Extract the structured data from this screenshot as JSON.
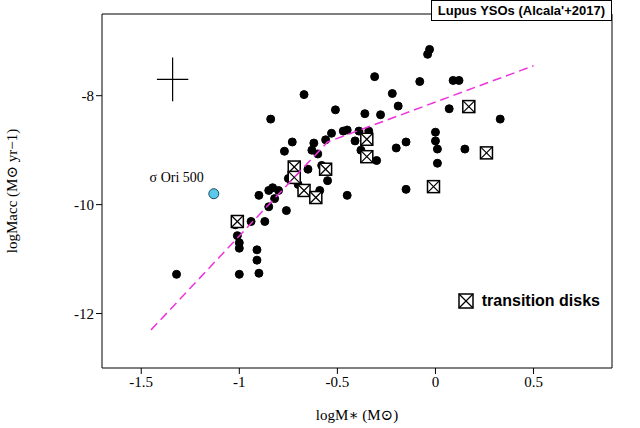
{
  "chart_data": {
    "type": "scatter",
    "title": "Lupus YSOs (Alcala'+2017)",
    "x_label": "logM∗ (M⊙)",
    "y_label": "logMacc (M⊙ yr−1)",
    "xlim": [
      -1.7,
      0.9
    ],
    "ylim": [
      -13,
      -6.5
    ],
    "xticks": [
      -1.5,
      -1,
      -0.5,
      0,
      0.5
    ],
    "yticks": [
      -12,
      -10,
      -8
    ],
    "legend": "lower right",
    "series": [
      {
        "type": "scatter",
        "marker": "circle",
        "color": "#000000",
        "x": [
          -1.32,
          -1.02,
          -1.01,
          -1.0,
          -1.0,
          -1.0,
          -0.91,
          -0.91,
          -0.9,
          -0.9,
          -0.94,
          -0.87,
          -0.85,
          -0.85,
          -0.84,
          -0.83,
          -0.82,
          -0.8,
          -0.77,
          -0.76,
          -0.75,
          -0.73,
          -0.7,
          -0.68,
          -0.67,
          -0.65,
          -0.63,
          -0.62,
          -0.6,
          -0.59,
          -0.58,
          -0.56,
          -0.55,
          -0.53,
          -0.51,
          -0.47,
          -0.45,
          -0.45,
          -0.41,
          -0.39,
          -0.38,
          -0.36,
          -0.34,
          -0.31,
          -0.3,
          -0.28,
          -0.22,
          -0.2,
          -0.19,
          -0.15,
          -0.15,
          -0.08,
          -0.04,
          -0.03,
          -0.02,
          0.0,
          0.0,
          0.01,
          0.01,
          0.07,
          0.09,
          0.12,
          0.15,
          0.33
        ],
        "values": [
          -11.28,
          -10.37,
          -10.57,
          -10.7,
          -10.8,
          -11.28,
          -10.83,
          -11.02,
          -11.26,
          -9.83,
          -10.31,
          -10.31,
          -9.74,
          -10.04,
          -8.43,
          -9.69,
          -9.89,
          -9.74,
          -9.02,
          -10.11,
          -9.52,
          -8.85,
          -9.63,
          -9.74,
          -7.98,
          -9.35,
          -9.0,
          -8.87,
          -9.07,
          -9.74,
          -9.28,
          -8.81,
          -9.56,
          -8.69,
          -8.26,
          -8.65,
          -8.63,
          -9.83,
          -8.83,
          -8.65,
          -9.0,
          -8.33,
          -8.65,
          -7.65,
          -9.19,
          -8.35,
          -7.96,
          -8.96,
          -8.19,
          -9.72,
          -8.85,
          -7.74,
          -7.24,
          -7.15,
          -9.65,
          -8.67,
          -8.83,
          -9.24,
          -8.98,
          -8.24,
          -7.72,
          -7.72,
          -8.98,
          -8.43
        ]
      },
      {
        "name": "transition disks",
        "type": "scatter",
        "marker": "square_x",
        "color": "#000000",
        "x": [
          -1.01,
          -0.72,
          -0.72,
          -0.67,
          -0.61,
          -0.56,
          -0.35,
          -0.35,
          -0.01,
          0.17,
          0.26
        ],
        "values": [
          -10.31,
          -9.31,
          -9.5,
          -9.74,
          -9.87,
          -9.35,
          -8.8,
          -9.12,
          -9.67,
          -8.2,
          -9.05
        ]
      },
      {
        "type": "scatter",
        "marker": "circle",
        "color": "#5bc8e8",
        "x": [
          -1.13
        ],
        "values": [
          -9.8
        ]
      },
      {
        "type": "line",
        "line_style": "dashed",
        "color": "#ee33dd",
        "x": [
          -1.45,
          -0.55,
          0.5
        ],
        "values": [
          -12.3,
          -8.85,
          -7.45
        ]
      }
    ],
    "annotations": [
      {
        "text": "σ Ori 500",
        "x": -1.13,
        "y": -9.8
      }
    ],
    "error_bar": {
      "x": -1.34,
      "y": -7.7,
      "xerr": 0.08,
      "yerr": 0.4
    }
  }
}
